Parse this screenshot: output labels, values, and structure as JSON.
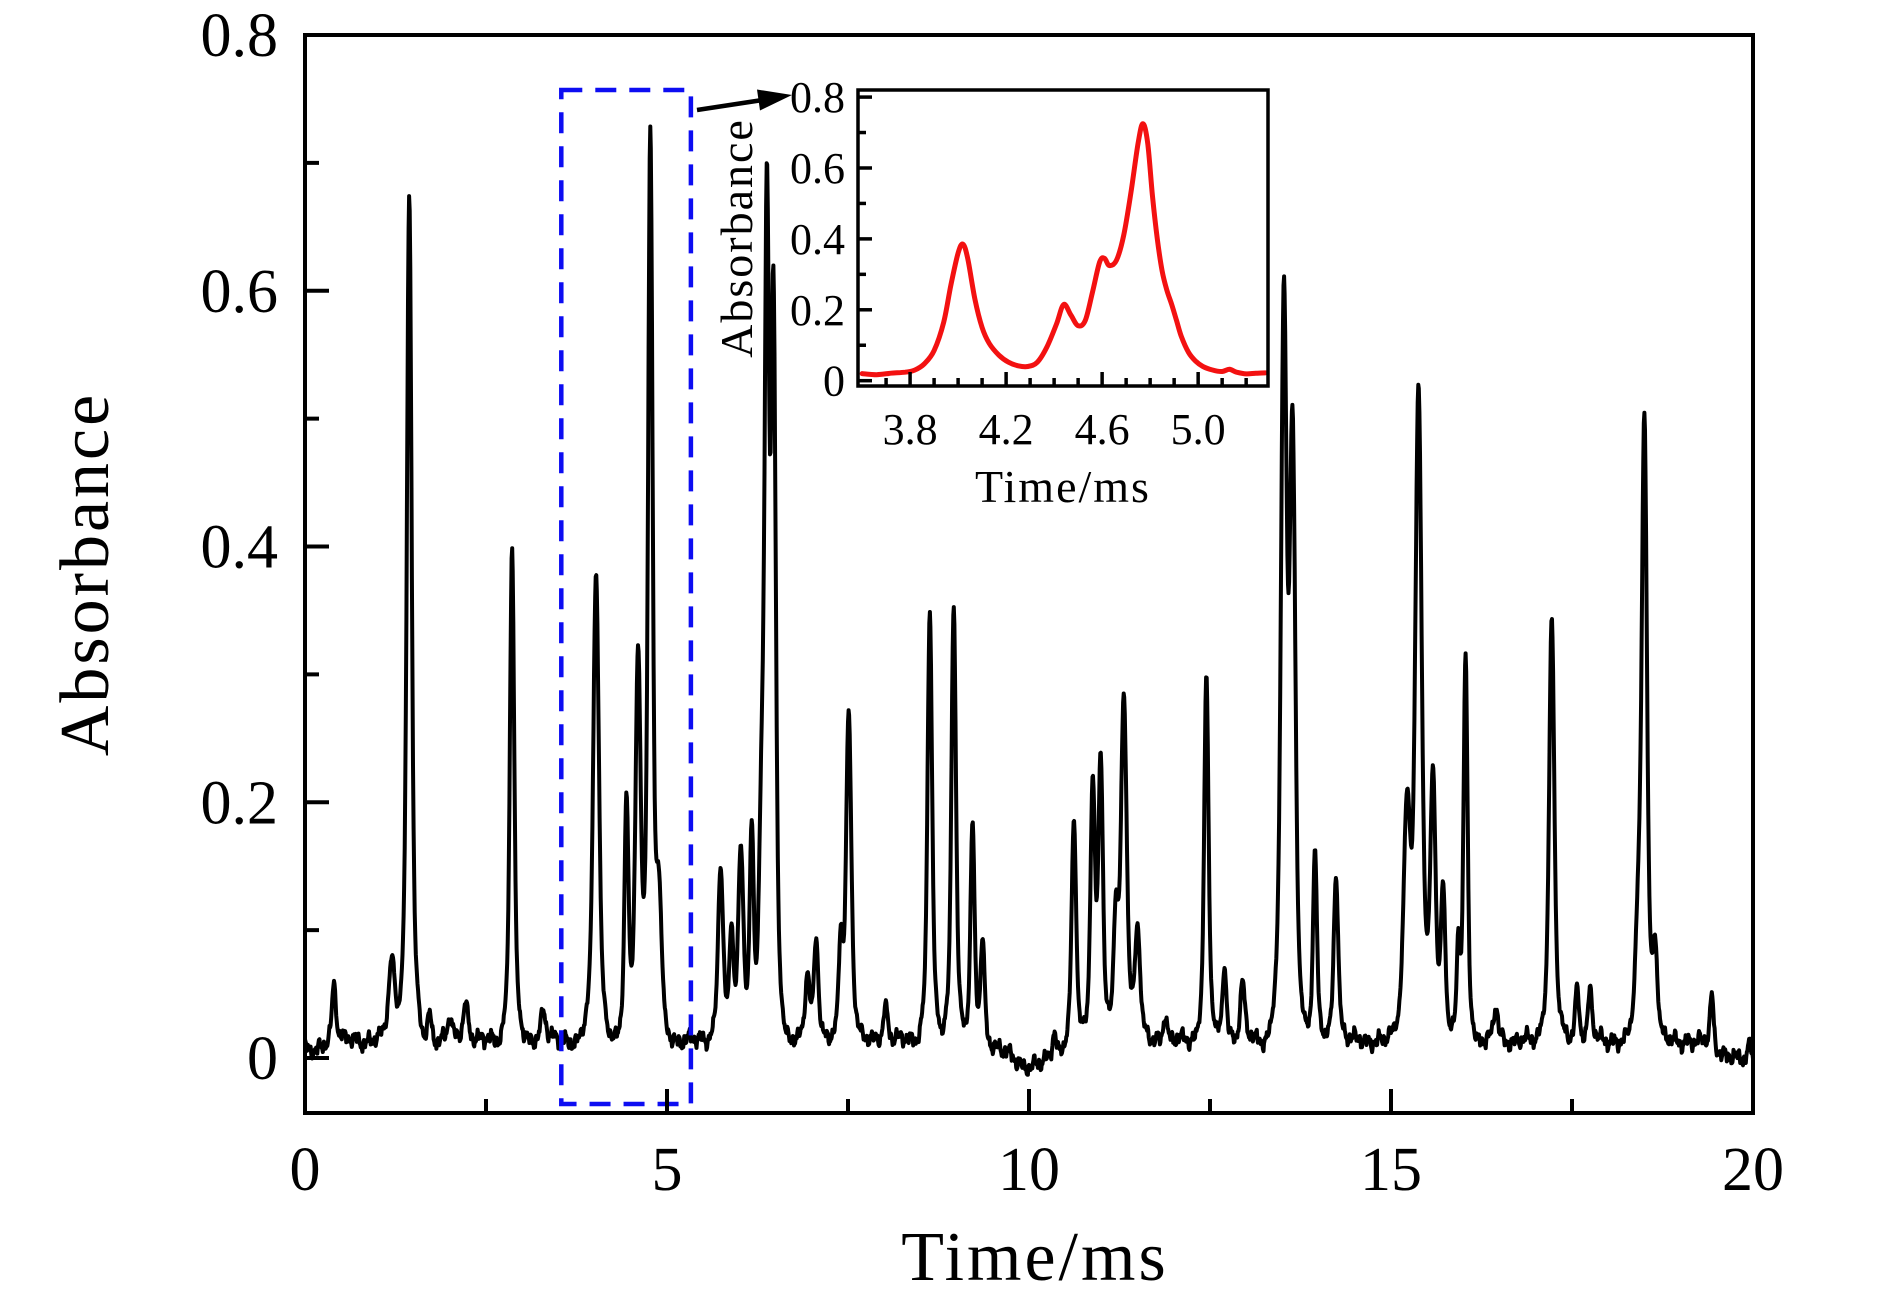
{
  "figure": {
    "background": "#ffffff",
    "colors": {
      "axis": "#000000",
      "main_curve": "#000000",
      "inset_curve": "#f31111",
      "zoom_box": "#0d0df2",
      "arrow": "#000000"
    }
  },
  "chart_data": [
    {
      "name": "main-spectrum",
      "type": "line",
      "title": "",
      "xlabel": "Time/ms",
      "ylabel": "Absorbance",
      "xlim": [
        0,
        20
      ],
      "ylim": [
        -0.043,
        0.8
      ],
      "grid": false,
      "legend": "none",
      "xticks": {
        "major": [
          0,
          5,
          10,
          15,
          20
        ],
        "major_labels": [
          "0",
          "5",
          "10",
          "15",
          "20"
        ],
        "minor": [
          2.5,
          7.5,
          12.5,
          17.5
        ]
      },
      "yticks": {
        "major": [
          0,
          0.2,
          0.4,
          0.6,
          0.8
        ],
        "major_labels": [
          "0",
          "0.2",
          "0.4",
          "0.6",
          "0.8"
        ],
        "minor": [
          0.1,
          0.3,
          0.5,
          0.7
        ]
      },
      "baseline": 0.014,
      "peaks_t_height_width": [
        [
          0.4,
          0.045,
          0.035
        ],
        [
          1.2,
          0.065,
          0.055
        ],
        [
          1.44,
          0.66,
          0.042
        ],
        [
          1.72,
          0.022,
          0.035
        ],
        [
          2.0,
          0.016,
          0.04
        ],
        [
          2.22,
          0.03,
          0.045
        ],
        [
          2.86,
          0.385,
          0.038
        ],
        [
          3.29,
          0.024,
          0.045
        ],
        [
          4.02,
          0.365,
          0.05
        ],
        [
          4.44,
          0.185,
          0.035
        ],
        [
          4.6,
          0.3,
          0.045
        ],
        [
          4.77,
          0.7,
          0.04
        ],
        [
          4.89,
          0.1,
          0.05
        ],
        [
          5.74,
          0.135,
          0.045
        ],
        [
          5.89,
          0.08,
          0.035
        ],
        [
          6.02,
          0.15,
          0.045
        ],
        [
          6.17,
          0.16,
          0.035
        ],
        [
          6.31,
          0.155,
          0.045
        ],
        [
          6.38,
          0.6,
          0.038
        ],
        [
          6.47,
          0.55,
          0.042
        ],
        [
          6.94,
          0.05,
          0.04
        ],
        [
          7.06,
          0.078,
          0.04
        ],
        [
          7.4,
          0.07,
          0.035
        ],
        [
          7.51,
          0.255,
          0.045
        ],
        [
          8.02,
          0.028,
          0.04
        ],
        [
          8.63,
          0.335,
          0.04
        ],
        [
          8.96,
          0.34,
          0.04
        ],
        [
          9.22,
          0.17,
          0.035
        ],
        [
          9.36,
          0.08,
          0.035
        ],
        [
          10.35,
          0.02,
          0.035
        ],
        [
          10.62,
          0.175,
          0.04
        ],
        [
          10.88,
          0.195,
          0.04
        ],
        [
          10.99,
          0.215,
          0.04
        ],
        [
          11.2,
          0.09,
          0.04
        ],
        [
          11.31,
          0.265,
          0.05
        ],
        [
          11.5,
          0.085,
          0.045
        ],
        [
          11.88,
          0.02,
          0.035
        ],
        [
          12.45,
          0.285,
          0.038
        ],
        [
          12.7,
          0.058,
          0.035
        ],
        [
          12.95,
          0.046,
          0.04
        ],
        [
          13.52,
          0.56,
          0.05
        ],
        [
          13.64,
          0.45,
          0.05
        ],
        [
          13.95,
          0.148,
          0.035
        ],
        [
          14.24,
          0.128,
          0.04
        ],
        [
          15.22,
          0.17,
          0.06
        ],
        [
          15.38,
          0.5,
          0.055
        ],
        [
          15.58,
          0.2,
          0.045
        ],
        [
          15.72,
          0.115,
          0.04
        ],
        [
          15.93,
          0.07,
          0.03
        ],
        [
          16.03,
          0.3,
          0.035
        ],
        [
          16.45,
          0.026,
          0.035
        ],
        [
          17.22,
          0.33,
          0.045
        ],
        [
          17.57,
          0.042,
          0.035
        ],
        [
          17.75,
          0.04,
          0.035
        ],
        [
          18.42,
          0.075,
          0.05
        ],
        [
          18.5,
          0.475,
          0.045
        ],
        [
          18.65,
          0.065,
          0.04
        ],
        [
          19.43,
          0.042,
          0.03
        ],
        [
          19.95,
          0.012,
          0.035
        ]
      ],
      "baseline_dips_t_depth_width": [
        [
          10.05,
          0.02,
          0.45
        ],
        [
          19.85,
          0.016,
          0.4
        ],
        [
          0.1,
          0.01,
          0.15
        ]
      ],
      "zoom_region": {
        "x0": 3.54,
        "x1": 5.33,
        "y0": -0.036,
        "y1": 0.757
      }
    },
    {
      "name": "inset-zoom-spectrum",
      "type": "line",
      "title": "",
      "xlabel": "Time/ms",
      "ylabel": "Absorbance",
      "xlim": [
        3.583,
        5.291
      ],
      "ylim": [
        -0.015,
        0.82
      ],
      "grid": false,
      "legend": "none",
      "xticks": {
        "major": [
          3.8,
          4.2,
          4.6,
          5.0
        ],
        "major_labels": [
          "3.8",
          "4.2",
          "4.6",
          "5.0"
        ],
        "minor": [
          3.7,
          3.9,
          4.0,
          4.1,
          4.3,
          4.4,
          4.5,
          4.7,
          4.8,
          4.9,
          5.1,
          5.2
        ]
      },
      "yticks": {
        "major": [
          0,
          0.2,
          0.4,
          0.6,
          0.8
        ],
        "major_labels": [
          "0",
          "0.2",
          "0.4",
          "0.6",
          "0.8"
        ],
        "minor": [
          0.1,
          0.3,
          0.5,
          0.7
        ]
      },
      "points": [
        [
          3.6,
          0.02
        ],
        [
          3.66,
          0.017
        ],
        [
          3.72,
          0.021
        ],
        [
          3.78,
          0.024
        ],
        [
          3.82,
          0.03
        ],
        [
          3.86,
          0.048
        ],
        [
          3.9,
          0.085
        ],
        [
          3.94,
          0.165
        ],
        [
          3.97,
          0.27
        ],
        [
          4.0,
          0.36
        ],
        [
          4.02,
          0.385
        ],
        [
          4.04,
          0.345
        ],
        [
          4.07,
          0.23
        ],
        [
          4.1,
          0.15
        ],
        [
          4.13,
          0.105
        ],
        [
          4.17,
          0.072
        ],
        [
          4.21,
          0.052
        ],
        [
          4.25,
          0.042
        ],
        [
          4.29,
          0.04
        ],
        [
          4.33,
          0.052
        ],
        [
          4.37,
          0.095
        ],
        [
          4.41,
          0.16
        ],
        [
          4.44,
          0.215
        ],
        [
          4.47,
          0.185
        ],
        [
          4.5,
          0.155
        ],
        [
          4.53,
          0.17
        ],
        [
          4.56,
          0.25
        ],
        [
          4.59,
          0.335
        ],
        [
          4.61,
          0.345
        ],
        [
          4.63,
          0.325
        ],
        [
          4.66,
          0.34
        ],
        [
          4.69,
          0.41
        ],
        [
          4.72,
          0.53
        ],
        [
          4.75,
          0.67
        ],
        [
          4.77,
          0.725
        ],
        [
          4.79,
          0.67
        ],
        [
          4.81,
          0.52
        ],
        [
          4.83,
          0.4
        ],
        [
          4.85,
          0.31
        ],
        [
          4.87,
          0.255
        ],
        [
          4.89,
          0.215
        ],
        [
          4.91,
          0.17
        ],
        [
          4.93,
          0.125
        ],
        [
          4.96,
          0.08
        ],
        [
          4.99,
          0.055
        ],
        [
          5.02,
          0.04
        ],
        [
          5.06,
          0.03
        ],
        [
          5.1,
          0.026
        ],
        [
          5.13,
          0.032
        ],
        [
          5.16,
          0.024
        ],
        [
          5.2,
          0.019
        ],
        [
          5.24,
          0.021
        ],
        [
          5.28,
          0.022
        ]
      ]
    }
  ]
}
